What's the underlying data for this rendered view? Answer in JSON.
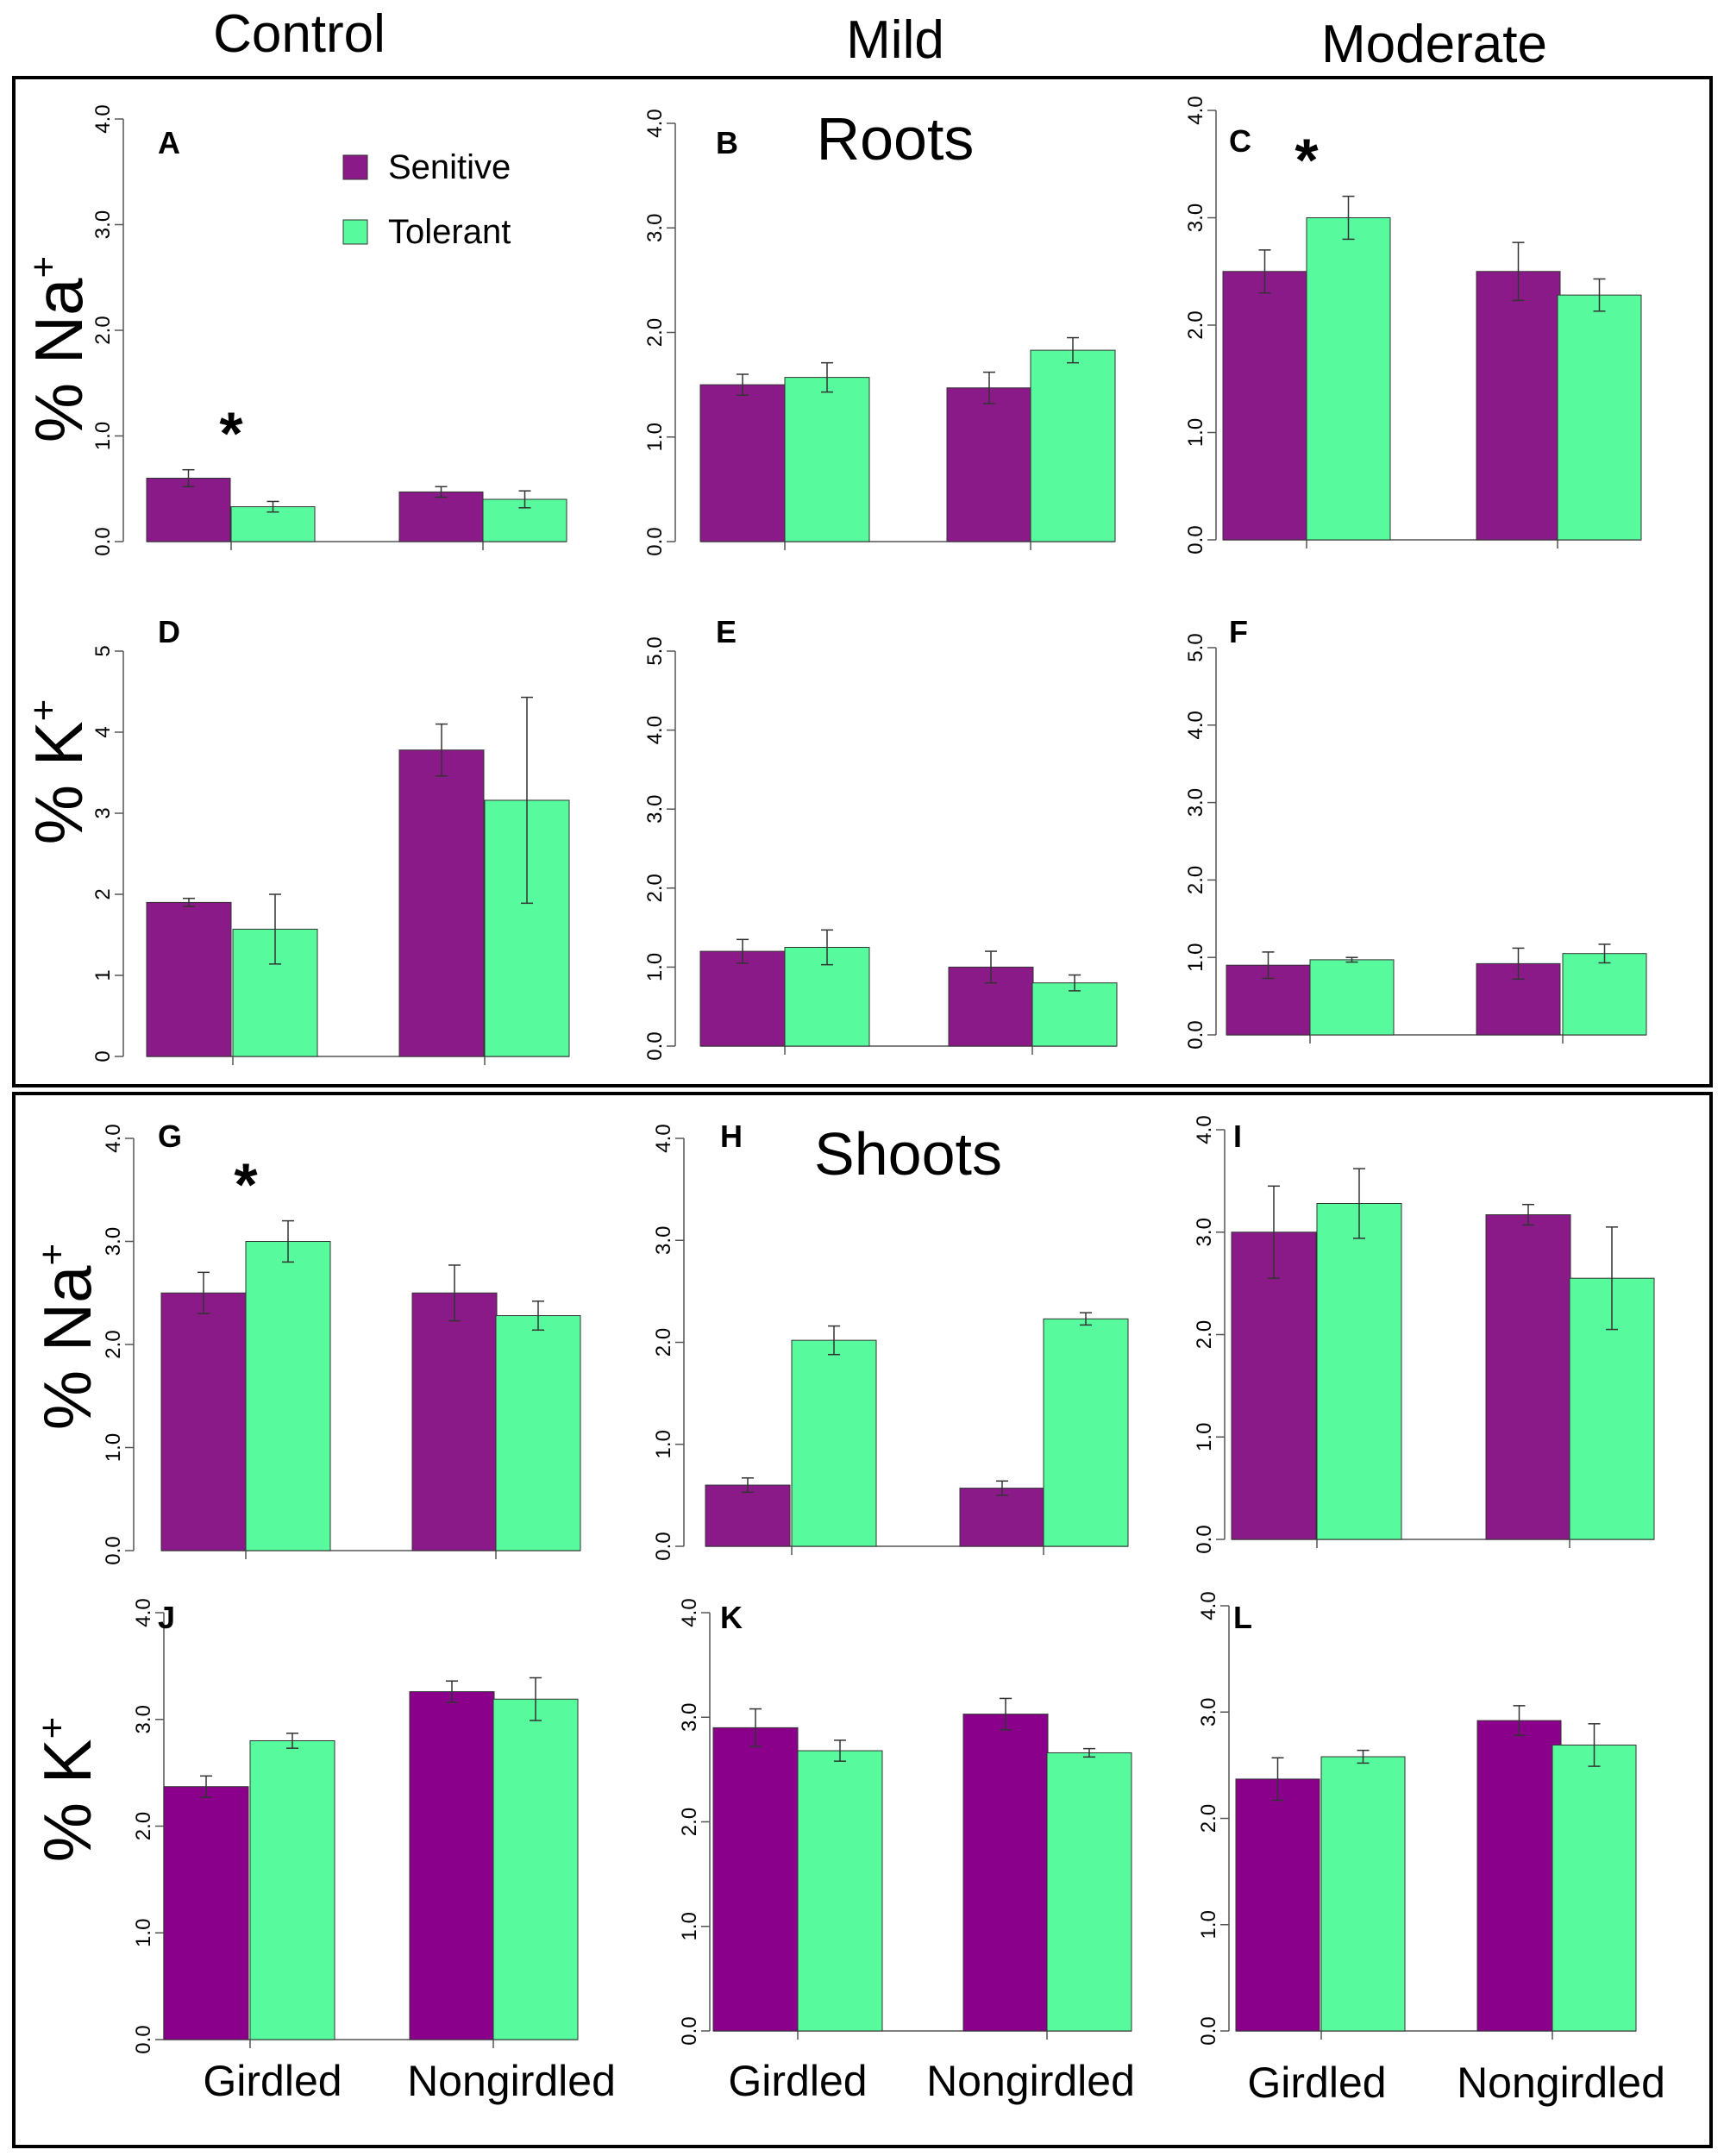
{
  "columns": [
    "Control",
    "Mild",
    "Moderate"
  ],
  "sections": [
    {
      "title": "Roots",
      "row_labels": [
        {
          "ion": "% Na",
          "sup": "+"
        },
        {
          "ion": "% K",
          "sup": "+"
        }
      ]
    },
    {
      "title": "Shoots",
      "row_labels": [
        {
          "ion": "% Na",
          "sup": "+"
        },
        {
          "ion": "% K",
          "sup": "+"
        }
      ]
    }
  ],
  "x_labels": [
    "Girdled",
    "Nongirdled"
  ],
  "legend": [
    "Senitive",
    "Tolerant"
  ],
  "colors": {
    "sensitive": "#8B1A89",
    "sensitive_shoot_k": "#8B008B",
    "tolerant": "#57FB9E"
  },
  "chart_data": [
    {
      "id": "A",
      "type": "bar",
      "title": "",
      "ylim": [
        0,
        4.0
      ],
      "yticks": [
        "0.0",
        "1.0",
        "2.0",
        "3.0",
        "4.0"
      ],
      "categories": [
        "Girdled",
        "Nongirdled"
      ],
      "series": [
        {
          "name": "Senitive",
          "values": [
            0.6,
            0.47
          ],
          "errors": [
            0.08,
            0.05
          ]
        },
        {
          "name": "Tolerant",
          "values": [
            0.33,
            0.4
          ],
          "errors": [
            0.05,
            0.08
          ]
        }
      ],
      "significance": [
        {
          "category": "Girdled",
          "label": "*"
        }
      ]
    },
    {
      "id": "B",
      "type": "bar",
      "title": "Roots",
      "ylim": [
        0,
        4.0
      ],
      "yticks": [
        "0.0",
        "1.0",
        "2.0",
        "3.0",
        "4.0"
      ],
      "categories": [
        "Girdled",
        "Nongirdled"
      ],
      "series": [
        {
          "name": "Senitive",
          "values": [
            1.5,
            1.47
          ],
          "errors": [
            0.1,
            0.15
          ]
        },
        {
          "name": "Tolerant",
          "values": [
            1.57,
            1.83
          ],
          "errors": [
            0.14,
            0.12
          ]
        }
      ]
    },
    {
      "id": "C",
      "type": "bar",
      "title": "",
      "ylim": [
        0,
        4.0
      ],
      "yticks": [
        "0.0",
        "1.0",
        "2.0",
        "3.0",
        "4.0"
      ],
      "categories": [
        "Girdled",
        "Nongirdled"
      ],
      "series": [
        {
          "name": "Senitive",
          "values": [
            2.5,
            2.5
          ],
          "errors": [
            0.2,
            0.27
          ]
        },
        {
          "name": "Tolerant",
          "values": [
            3.0,
            2.28
          ],
          "errors": [
            0.2,
            0.15
          ]
        }
      ],
      "significance": [
        {
          "category": "Girdled",
          "label": "*"
        }
      ]
    },
    {
      "id": "D",
      "type": "bar",
      "title": "",
      "ylim": [
        0,
        5
      ],
      "yticks": [
        "0",
        "1",
        "2",
        "3",
        "4",
        "5"
      ],
      "categories": [
        "Girdled",
        "Nongirdled"
      ],
      "series": [
        {
          "name": "Senitive",
          "values": [
            1.9,
            3.78
          ],
          "errors": [
            0.05,
            0.32
          ]
        },
        {
          "name": "Tolerant",
          "values": [
            1.57,
            3.16
          ],
          "errors": [
            0.43,
            1.27
          ]
        }
      ]
    },
    {
      "id": "E",
      "type": "bar",
      "title": "",
      "ylim": [
        0,
        5.0
      ],
      "yticks": [
        "0.0",
        "1.0",
        "2.0",
        "3.0",
        "4.0",
        "5.0"
      ],
      "categories": [
        "Girdled",
        "Nongirdled"
      ],
      "series": [
        {
          "name": "Senitive",
          "values": [
            1.2,
            1.0
          ],
          "errors": [
            0.15,
            0.2
          ]
        },
        {
          "name": "Tolerant",
          "values": [
            1.25,
            0.8
          ],
          "errors": [
            0.22,
            0.1
          ]
        }
      ]
    },
    {
      "id": "F",
      "type": "bar",
      "title": "",
      "ylim": [
        0,
        5.0
      ],
      "yticks": [
        "0.0",
        "1.0",
        "2.0",
        "3.0",
        "4.0",
        "5.0"
      ],
      "categories": [
        "Girdled",
        "Nongirdled"
      ],
      "series": [
        {
          "name": "Senitive",
          "values": [
            0.9,
            0.92
          ],
          "errors": [
            0.17,
            0.2
          ]
        },
        {
          "name": "Tolerant",
          "values": [
            0.97,
            1.05
          ],
          "errors": [
            0.03,
            0.12
          ]
        }
      ]
    },
    {
      "id": "G",
      "type": "bar",
      "title": "",
      "ylim": [
        0,
        4.0
      ],
      "yticks": [
        "0.0",
        "1.0",
        "2.0",
        "3.0",
        "4.0"
      ],
      "categories": [
        "Girdled",
        "Nongirdled"
      ],
      "series": [
        {
          "name": "Senitive",
          "values": [
            2.5,
            2.5
          ],
          "errors": [
            0.2,
            0.27
          ]
        },
        {
          "name": "Tolerant",
          "values": [
            3.0,
            2.28
          ],
          "errors": [
            0.2,
            0.14
          ]
        }
      ],
      "significance": [
        {
          "category": "Girdled",
          "label": "*"
        }
      ]
    },
    {
      "id": "H",
      "type": "bar",
      "title": "Shoots",
      "ylim": [
        0,
        4.0
      ],
      "yticks": [
        "0.0",
        "1.0",
        "2.0",
        "3.0",
        "4.0"
      ],
      "categories": [
        "Girdled",
        "Nongirdled"
      ],
      "series": [
        {
          "name": "Senitive",
          "values": [
            0.6,
            0.57
          ],
          "errors": [
            0.07,
            0.07
          ]
        },
        {
          "name": "Tolerant",
          "values": [
            2.02,
            2.23
          ],
          "errors": [
            0.14,
            0.06
          ]
        }
      ]
    },
    {
      "id": "I",
      "type": "bar",
      "title": "",
      "ylim": [
        0,
        4.0
      ],
      "yticks": [
        "0.0",
        "1.0",
        "2.0",
        "3.0",
        "4.0"
      ],
      "categories": [
        "Girdled",
        "Nongirdled"
      ],
      "series": [
        {
          "name": "Senitive",
          "values": [
            3.0,
            3.17
          ],
          "errors": [
            0.45,
            0.1
          ]
        },
        {
          "name": "Tolerant",
          "values": [
            3.28,
            2.55
          ],
          "errors": [
            0.34,
            0.5
          ]
        }
      ]
    },
    {
      "id": "J",
      "type": "bar",
      "title": "",
      "ylim": [
        0,
        4.0
      ],
      "yticks": [
        "0.0",
        "1.0",
        "2.0",
        "3.0",
        "4.0"
      ],
      "categories": [
        "Girdled",
        "Nongirdled"
      ],
      "series": [
        {
          "name": "Senitive",
          "values": [
            2.37,
            3.26
          ],
          "errors": [
            0.1,
            0.1
          ]
        },
        {
          "name": "Tolerant",
          "values": [
            2.8,
            3.19
          ],
          "errors": [
            0.07,
            0.2
          ]
        }
      ]
    },
    {
      "id": "K",
      "type": "bar",
      "title": "",
      "ylim": [
        0,
        4.0
      ],
      "yticks": [
        "0.0",
        "1.0",
        "2.0",
        "3.0",
        "4.0"
      ],
      "categories": [
        "Girdled",
        "Nongirdled"
      ],
      "series": [
        {
          "name": "Senitive",
          "values": [
            2.9,
            3.03
          ],
          "errors": [
            0.18,
            0.15
          ]
        },
        {
          "name": "Tolerant",
          "values": [
            2.68,
            2.66
          ],
          "errors": [
            0.1,
            0.04
          ]
        }
      ]
    },
    {
      "id": "L",
      "type": "bar",
      "title": "",
      "ylim": [
        0,
        4.0
      ],
      "yticks": [
        "0.0",
        "1.0",
        "2.0",
        "3.0",
        "4.0"
      ],
      "categories": [
        "Girdled",
        "Nongirdled"
      ],
      "series": [
        {
          "name": "Senitive",
          "values": [
            2.37,
            2.92
          ],
          "errors": [
            0.2,
            0.14
          ]
        },
        {
          "name": "Tolerant",
          "values": [
            2.58,
            2.69
          ],
          "errors": [
            0.06,
            0.2
          ]
        }
      ]
    }
  ]
}
